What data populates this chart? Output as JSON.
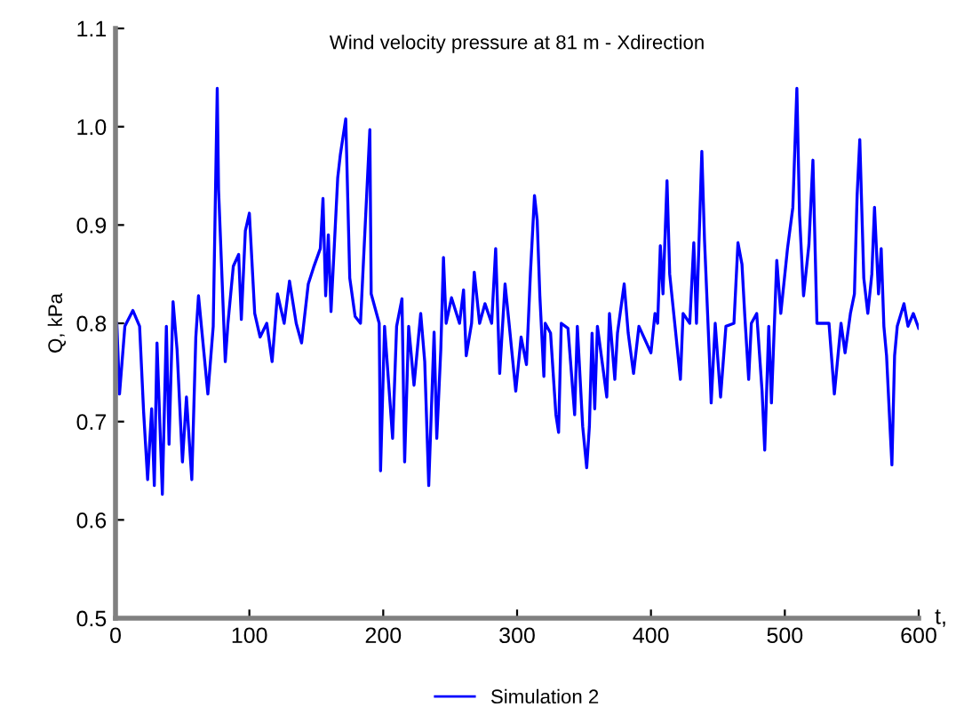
{
  "chart_data": {
    "type": "line",
    "title": "Wind velocity pressure at 81 m - Xdirection",
    "xlabel": "t,",
    "ylabel": "Q, kPa",
    "xlim": [
      0,
      600
    ],
    "ylim": [
      0.5,
      1.1
    ],
    "xticks": [
      0,
      100,
      200,
      300,
      400,
      500,
      600
    ],
    "yticks": [
      0.5,
      0.6,
      0.7,
      0.8,
      0.9,
      {
        "value": 1,
        "label": "1.0"
      },
      1.1
    ],
    "grid": false,
    "legend": "bottom",
    "marker": "none",
    "line_style": "solid",
    "series": [
      {
        "name": "Simulation 2",
        "color": "#0000ff",
        "x": [
          1,
          3,
          7,
          13,
          18,
          21,
          24,
          27,
          29,
          31,
          35,
          38,
          40,
          43,
          46,
          50,
          53,
          57,
          60,
          62,
          69,
          73,
          76,
          77,
          82,
          84,
          88,
          92,
          94,
          97,
          100,
          104,
          108,
          113,
          117,
          121,
          126,
          130,
          135,
          139,
          144,
          148,
          153,
          155,
          157,
          159,
          161,
          166,
          168,
          170,
          172,
          175,
          179,
          183,
          190,
          191,
          197,
          198,
          201,
          207,
          210,
          214,
          216,
          219,
          223,
          228,
          231,
          234,
          238,
          240,
          243,
          245,
          247,
          251,
          257,
          260,
          262,
          266,
          268,
          272,
          276,
          281,
          284,
          287,
          291,
          294,
          299,
          303,
          307,
          310,
          313,
          315,
          317,
          320,
          321,
          325,
          329,
          331,
          333,
          338,
          343,
          345,
          349,
          352,
          354,
          356,
          358,
          360,
          367,
          369,
          373,
          375,
          380,
          383,
          387,
          391,
          400,
          403,
          405,
          407,
          409,
          412,
          414,
          418,
          422,
          424,
          429,
          432,
          434,
          438,
          440,
          444,
          445,
          448,
          452,
          456,
          462,
          465,
          468,
          470,
          473,
          475,
          479,
          483,
          485,
          488,
          490,
          494,
          497,
          502,
          506,
          509,
          511,
          514,
          518,
          521,
          524,
          528,
          533,
          537,
          542,
          545,
          549,
          552,
          554,
          556,
          559,
          562,
          565,
          567,
          570,
          572,
          574,
          576,
          579,
          580,
          582,
          584,
          589,
          592,
          596,
          600
        ],
        "values": [
          0.8,
          0.728,
          0.797,
          0.813,
          0.797,
          0.71,
          0.641,
          0.713,
          0.635,
          0.78,
          0.626,
          0.797,
          0.677,
          0.822,
          0.773,
          0.659,
          0.725,
          0.641,
          0.786,
          0.828,
          0.728,
          0.797,
          1.039,
          0.936,
          0.761,
          0.8,
          0.858,
          0.87,
          0.804,
          0.894,
          0.912,
          0.81,
          0.786,
          0.8,
          0.761,
          0.83,
          0.8,
          0.843,
          0.8,
          0.78,
          0.84,
          0.857,
          0.876,
          0.927,
          0.828,
          0.89,
          0.812,
          0.948,
          0.972,
          0.99,
          1.008,
          0.846,
          0.807,
          0.8,
          0.997,
          0.83,
          0.8,
          0.65,
          0.797,
          0.683,
          0.797,
          0.825,
          0.659,
          0.797,
          0.737,
          0.81,
          0.761,
          0.635,
          0.791,
          0.683,
          0.773,
          0.867,
          0.8,
          0.826,
          0.8,
          0.834,
          0.767,
          0.8,
          0.852,
          0.8,
          0.82,
          0.8,
          0.876,
          0.749,
          0.84,
          0.8,
          0.731,
          0.786,
          0.758,
          0.852,
          0.93,
          0.905,
          0.828,
          0.746,
          0.8,
          0.79,
          0.707,
          0.689,
          0.8,
          0.795,
          0.707,
          0.797,
          0.695,
          0.653,
          0.695,
          0.79,
          0.713,
          0.797,
          0.725,
          0.81,
          0.743,
          0.79,
          0.84,
          0.79,
          0.749,
          0.797,
          0.77,
          0.81,
          0.8,
          0.879,
          0.83,
          0.945,
          0.85,
          0.797,
          0.743,
          0.81,
          0.8,
          0.882,
          0.8,
          0.975,
          0.885,
          0.755,
          0.719,
          0.8,
          0.725,
          0.797,
          0.8,
          0.882,
          0.86,
          0.81,
          0.743,
          0.8,
          0.81,
          0.731,
          0.671,
          0.797,
          0.719,
          0.864,
          0.81,
          0.876,
          0.918,
          1.039,
          0.91,
          0.828,
          0.88,
          0.966,
          0.8,
          0.8,
          0.8,
          0.728,
          0.8,
          0.77,
          0.81,
          0.83,
          0.93,
          0.987,
          0.846,
          0.81,
          0.85,
          0.918,
          0.83,
          0.876,
          0.797,
          0.767,
          0.683,
          0.656,
          0.767,
          0.797,
          0.82,
          0.797,
          0.81,
          0.795
        ]
      }
    ]
  }
}
